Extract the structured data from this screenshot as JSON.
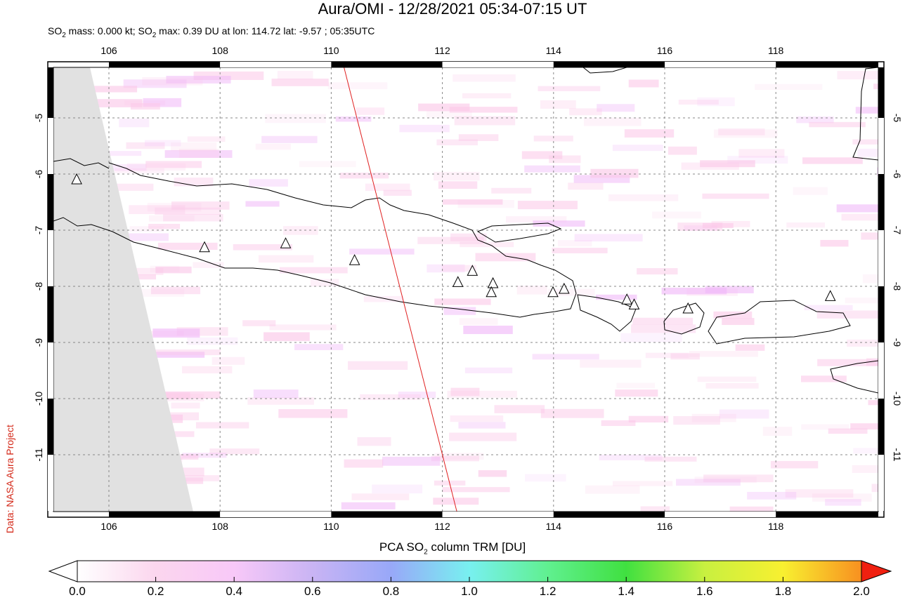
{
  "title": "Aura/OMI - 12/28/2021 05:34-07:15 UT",
  "subtitle": {
    "prefix": "SO",
    "sub": "2",
    "mass": " mass: 0.000 kt; SO",
    "sub2": "2",
    "rest": " max: 0.39 DU at lon: 114.72 lat: -9.57 ; 05:35UTC"
  },
  "credit": "Data: NASA Aura Project",
  "colorbar": {
    "title_a": "PCA SO",
    "title_sub": "2",
    "title_b": " column TRM [DU]",
    "labels": [
      "0.0",
      "0.2",
      "0.4",
      "0.6",
      "0.8",
      "1.0",
      "1.2",
      "1.4",
      "1.6",
      "1.8",
      "2.0"
    ],
    "colors": [
      "#ffffff",
      "#fbd6ee",
      "#f8c8f8",
      "#c9b4f4",
      "#98a8f8",
      "#78f0f0",
      "#60f090",
      "#40e040",
      "#c8f040",
      "#f8f030",
      "#f89020",
      "#f02010"
    ]
  },
  "chart_data": {
    "type": "map",
    "lon_ticks": [
      106,
      108,
      110,
      112,
      114,
      116,
      118
    ],
    "lat_ticks": [
      -5,
      -6,
      -7,
      -8,
      -9,
      -10,
      -11
    ],
    "lon_range": [
      105.0,
      119.9
    ],
    "lat_range": [
      -4.1,
      -12.0
    ],
    "orbit_line": [
      [
        110.23,
        -4.1
      ],
      [
        112.26,
        -12.0
      ]
    ],
    "volcanoes": [
      [
        105.42,
        -6.1
      ],
      [
        107.72,
        -7.31
      ],
      [
        109.18,
        -7.24
      ],
      [
        110.42,
        -7.54
      ],
      [
        112.28,
        -7.93
      ],
      [
        112.54,
        -7.73
      ],
      [
        112.91,
        -7.95
      ],
      [
        112.88,
        -8.11
      ],
      [
        113.99,
        -8.11
      ],
      [
        114.19,
        -8.05
      ],
      [
        115.32,
        -8.24
      ],
      [
        115.45,
        -8.33
      ],
      [
        116.42,
        -8.4
      ],
      [
        118.98,
        -8.18
      ]
    ],
    "so2_max": {
      "value": 0.39,
      "unit": "DU",
      "lon": 114.72,
      "lat": -9.57
    },
    "colors": {
      "orbit": "#e02020",
      "nodata": "#e1e1e1"
    }
  }
}
